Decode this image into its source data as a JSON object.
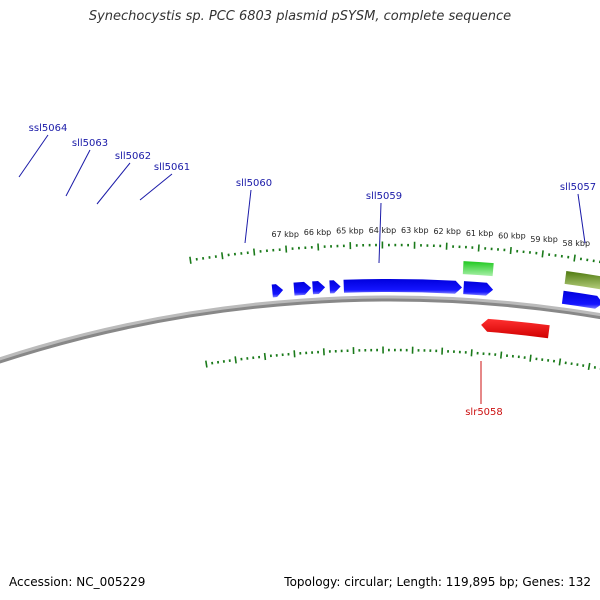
{
  "title": "Synechocystis sp. PCC 6803 plasmid pSYSM, complete sequence",
  "footer": {
    "accession": "Accession: NC_005229",
    "summary": "Topology: circular; Length: 119,895 bp; Genes: 132"
  },
  "colors": {
    "backbone": "#888888",
    "ticks": "#1a7a1a",
    "forward_gene": "#1010ee",
    "forward_gene_alt": "#2ecc2e",
    "forward_gene_alt2": "#5f8a1a",
    "reverse_gene": "#ee1010",
    "label_forward": "#1a1aa8",
    "label_reverse": "#cc1111"
  },
  "kbp_labels": [
    "67 kbp",
    "66 kbp",
    "65 kbp",
    "64 kbp",
    "63 kbp",
    "62 kbp",
    "61 kbp",
    "60 kbp",
    "59 kbp",
    "58 kbp"
  ],
  "genes": [
    {
      "name": "ssl5064",
      "strand": "forward",
      "start_kbp": 67.55,
      "end_kbp": 67.2
    },
    {
      "name": "sll5063",
      "strand": "forward",
      "start_kbp": 66.85,
      "end_kbp": 66.3
    },
    {
      "name": "sll5062",
      "strand": "forward",
      "start_kbp": 66.25,
      "end_kbp": 65.85
    },
    {
      "name": "sll5061",
      "strand": "forward",
      "start_kbp": 65.7,
      "end_kbp": 65.35
    },
    {
      "name": "sll5060",
      "strand": "forward",
      "start_kbp": 65.25,
      "end_kbp": 61.45
    },
    {
      "name": "sll5059",
      "strand": "forward",
      "start_kbp": 61.45,
      "end_kbp": 60.5,
      "lane": "outer",
      "color_key": "forward_gene_alt"
    },
    {
      "name": "sll5059b",
      "strand": "forward",
      "start_kbp": 61.4,
      "end_kbp": 60.45
    },
    {
      "name": "slr5058",
      "strand": "reverse",
      "start_kbp": 60.75,
      "end_kbp": 58.5
    },
    {
      "name": "sll5057",
      "strand": "forward",
      "start_kbp": 58.2,
      "end_kbp": 56.9,
      "lane": "outer",
      "color_key": "forward_gene_alt2"
    },
    {
      "name": "sll5057b",
      "strand": "forward",
      "start_kbp": 58.2,
      "end_kbp": 56.9
    }
  ],
  "gene_labels": [
    {
      "name": "ssl5064",
      "strand": "forward"
    },
    {
      "name": "sll5063",
      "strand": "forward"
    },
    {
      "name": "sll5062",
      "strand": "forward"
    },
    {
      "name": "sll5061",
      "strand": "forward"
    },
    {
      "name": "sll5060",
      "strand": "forward"
    },
    {
      "name": "sll5059",
      "strand": "forward"
    },
    {
      "name": "sll5057",
      "strand": "forward"
    },
    {
      "name": "slr5058",
      "strand": "reverse"
    }
  ]
}
